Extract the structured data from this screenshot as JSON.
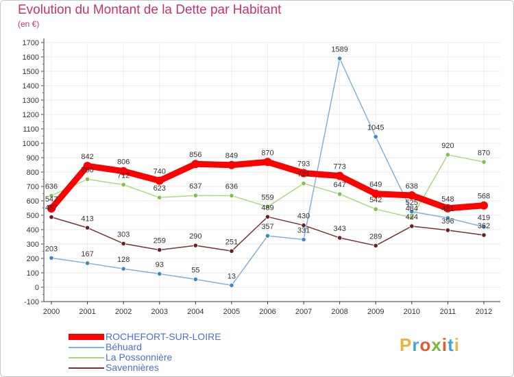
{
  "title": "Evolution du Montant de la Dette par Habitant",
  "subtitle": "(en €)",
  "brand": {
    "text": "Proxiti",
    "colors": [
      "#e8b53a",
      "#3fa6d9",
      "#e05a2c",
      "#79b83a",
      "#e05a2c",
      "#3fa6d9",
      "#e8b53a"
    ]
  },
  "chart_data": {
    "type": "line",
    "title": "Evolution du Montant de la Dette par Habitant",
    "ylabel": "(en €)",
    "xlabel": "",
    "x": [
      "2000",
      "2001",
      "2002",
      "2003",
      "2004",
      "2005",
      "2006",
      "2007",
      "2008",
      "2009",
      "2010",
      "2011",
      "2012"
    ],
    "ylim": [
      -100,
      1700
    ],
    "yticks": [
      -100,
      0,
      100,
      200,
      300,
      400,
      500,
      600,
      700,
      800,
      900,
      1000,
      1100,
      1200,
      1300,
      1400,
      1500,
      1600,
      1700
    ],
    "grid": true,
    "legend_position": "bottom-left",
    "series": [
      {
        "name": "ROCHEFORT-SUR-LOIRE",
        "color": "#ff0000",
        "marker": "#ff0000",
        "thick": true,
        "values": [
          547,
          842,
          806,
          740,
          856,
          849,
          870,
          793,
          773,
          649,
          638,
          548,
          568
        ]
      },
      {
        "name": "Béhuard",
        "color": "#7fb2dc",
        "marker": "#3a8ac8",
        "values": [
          203,
          167,
          128,
          93,
          55,
          13,
          357,
          331,
          1589,
          1045,
          525,
          481,
          419
        ]
      },
      {
        "name": "La Possonnière",
        "color": "#a8dc7a",
        "marker": "#7cc24a",
        "values": [
          636,
          750,
          712,
          623,
          637,
          636,
          559,
          721,
          647,
          542,
          484,
          920,
          870
        ]
      },
      {
        "name": "Savennières",
        "color": "#7a3030",
        "marker": "#6a2020",
        "values": [
          487,
          413,
          303,
          259,
          290,
          251,
          489,
          430,
          343,
          289,
          424,
          396,
          362
        ]
      }
    ]
  }
}
